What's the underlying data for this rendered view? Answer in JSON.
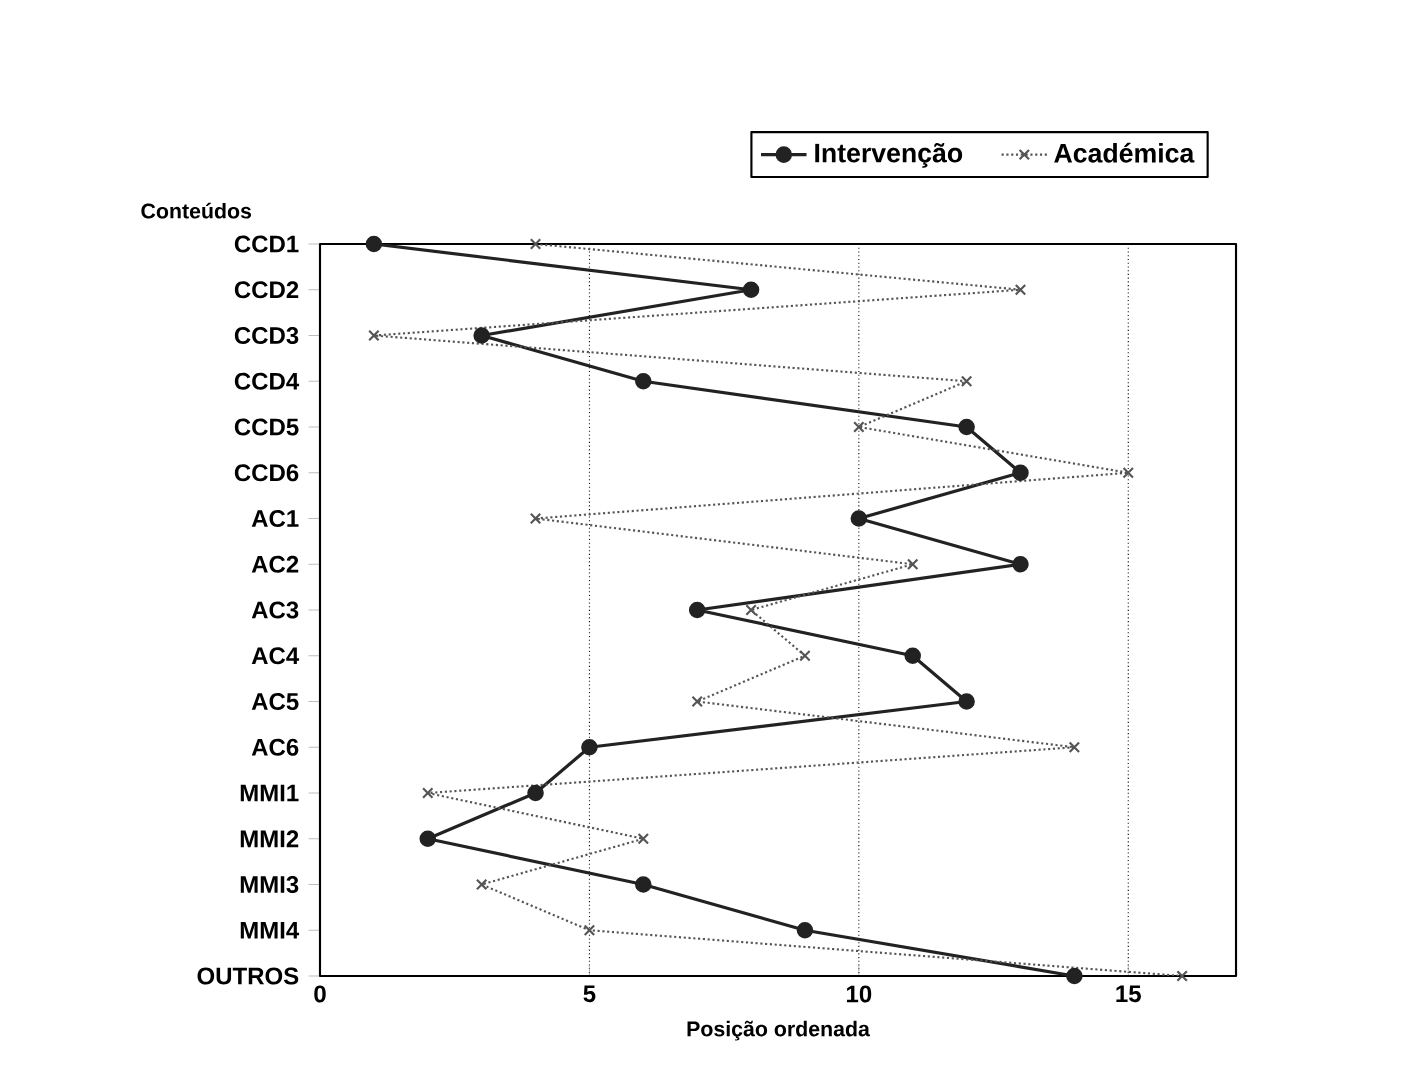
{
  "chart_data": {
    "type": "line",
    "xlabel": "Posição ordenada",
    "ylabel": "Conteúdos",
    "orientation": "horizontal",
    "categories": [
      "CCD1",
      "CCD2",
      "CCD3",
      "CCD4",
      "CCD5",
      "CCD6",
      "AC1",
      "AC2",
      "AC3",
      "AC4",
      "AC5",
      "AC6",
      "MMI1",
      "MMI2",
      "MMI3",
      "MMI4",
      "OUTROS"
    ],
    "series": [
      {
        "name": "Intervenção",
        "color": "#222222",
        "marker": "circle",
        "line_style": "solid",
        "values": [
          1,
          8,
          3,
          6,
          12,
          13,
          10,
          13,
          7,
          11,
          12,
          5,
          4,
          2,
          6,
          9,
          14
        ]
      },
      {
        "name": "Académica",
        "color": "#555555",
        "marker": "cross",
        "line_style": "dotted",
        "values": [
          4,
          13,
          1,
          12,
          10,
          15,
          4,
          11,
          8,
          9,
          7,
          14,
          2,
          6,
          3,
          5,
          16
        ]
      }
    ],
    "xlim": [
      0,
      17
    ],
    "xticks": [
      0,
      5,
      10,
      15
    ],
    "grid": "x",
    "legend": "top right"
  }
}
